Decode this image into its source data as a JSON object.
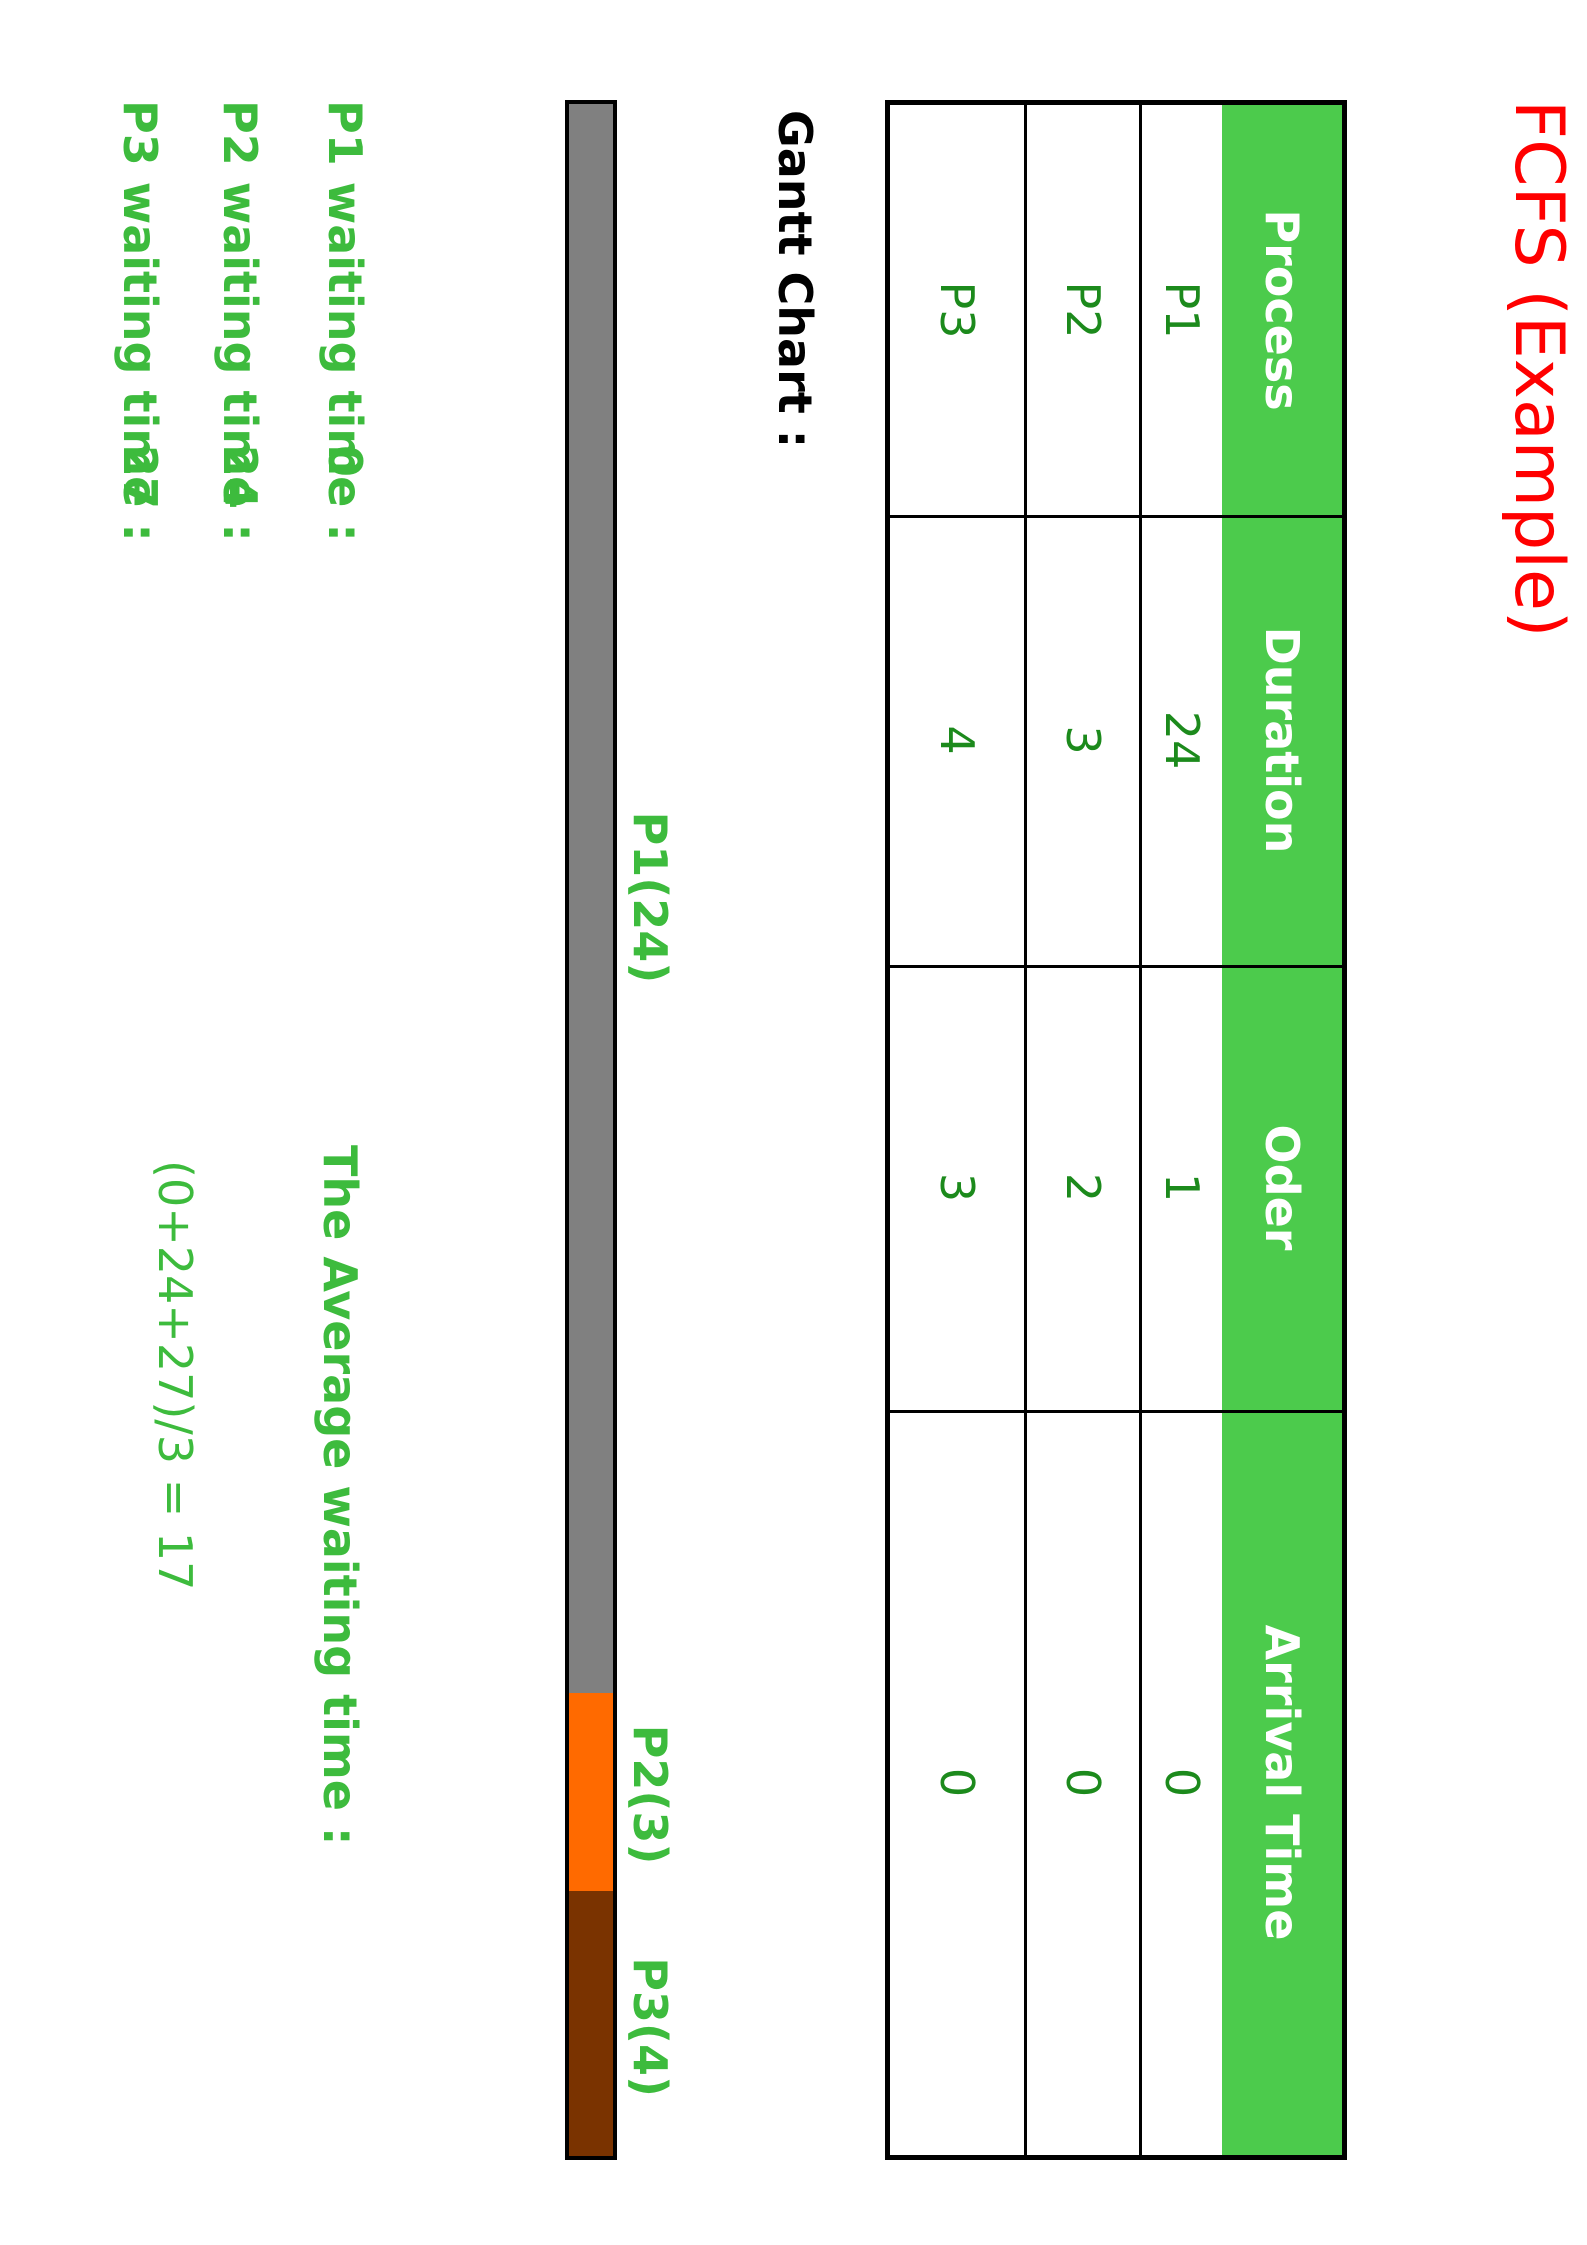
{
  "title": "FCFS (Example)",
  "table": {
    "headers": [
      "Process",
      "Duration",
      "Oder",
      "Arrival Time"
    ],
    "rows": [
      [
        "P1",
        "24",
        "1",
        "0"
      ],
      [
        "P2",
        "3",
        "2",
        "0"
      ],
      [
        "P3",
        "4",
        "3",
        "0"
      ]
    ]
  },
  "gantt": {
    "label": "Gantt Chart :",
    "segments": [
      {
        "label": "P1(24)",
        "duration": 24,
        "color": "#808080"
      },
      {
        "label": "P2(3)",
        "duration": 3,
        "color": "#ff6a00"
      },
      {
        "label": "P3(4)",
        "duration": 4,
        "color": "#7a3300"
      }
    ]
  },
  "waiting": [
    {
      "label": "P1 waiting time :",
      "value": "0"
    },
    {
      "label": "P2 waiting time :",
      "value": "24"
    },
    {
      "label": "P3 waiting time :",
      "value": "27"
    }
  ],
  "average": {
    "label": "The Average waiting time :",
    "expression": "(0+24+27)/3 = 17"
  },
  "colors": {
    "title": "#ff0000",
    "header_bg": "#4ccb4c",
    "green_text": "#3dbb3d",
    "cell_text": "#1c8a1c"
  }
}
